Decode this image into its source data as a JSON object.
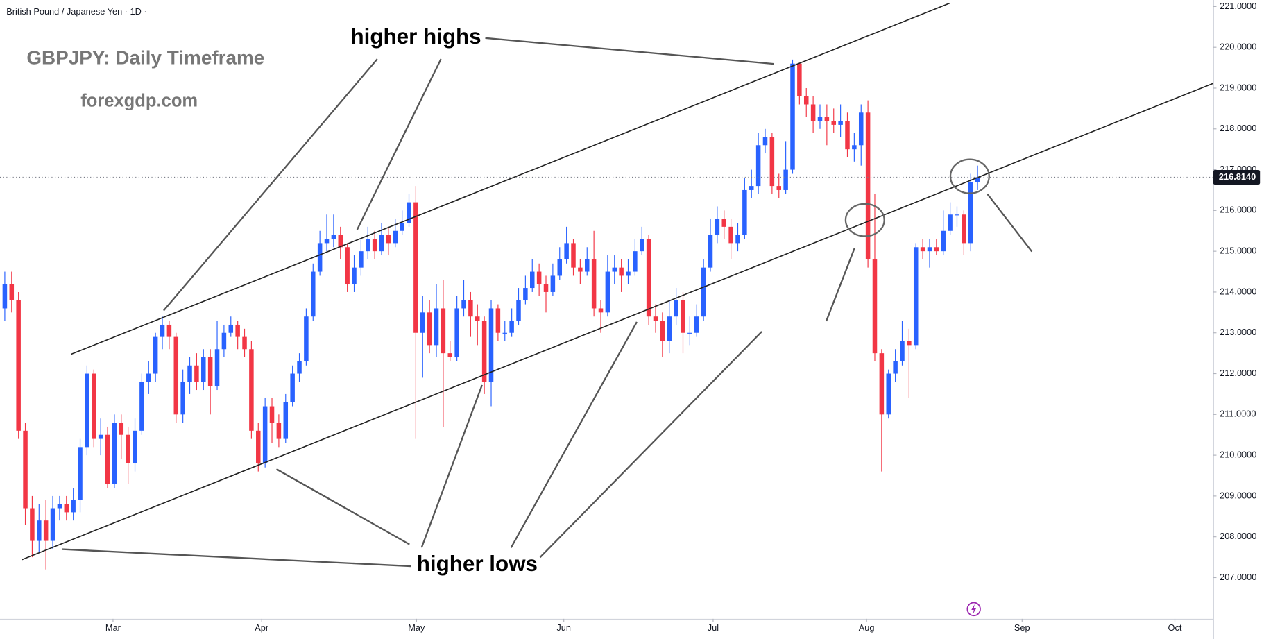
{
  "chart_data": {
    "type": "candlestick",
    "legend_text": "British Pound / Japanese Yen · 1D ·",
    "title": "GBPJPY: Daily Timeframe",
    "subtitle": "forexgdp.com",
    "annotations": [
      "higher highs",
      "higher lows"
    ],
    "up_color": "#2962ff",
    "down_color": "#f23645",
    "open": [
      213.6,
      214.2,
      213.8,
      210.6,
      208.7,
      207.9,
      208.4,
      207.9,
      208.7,
      208.8,
      208.6,
      208.9,
      210.2,
      212.0,
      210.4,
      210.5,
      209.3,
      210.8,
      210.5,
      209.8,
      210.6,
      211.8,
      212.0,
      212.9,
      213.2,
      212.9,
      211.0,
      211.8,
      212.2,
      211.8,
      212.4,
      211.7,
      212.6,
      213.0,
      213.2,
      212.9,
      212.6,
      210.6,
      209.8,
      211.2,
      210.8,
      210.4,
      211.3,
      212.0,
      212.3,
      213.4,
      214.5,
      215.2,
      215.3,
      215.4,
      215.1,
      214.2,
      214.6,
      215.0,
      215.3,
      215.0,
      215.4,
      215.2,
      215.5,
      215.7,
      216.2,
      213.0,
      213.5,
      212.7,
      213.6,
      212.5,
      212.4,
      213.6,
      213.8,
      213.4,
      213.3,
      211.8,
      213.6,
      213.0,
      213.0,
      213.3,
      213.8,
      214.1,
      214.5,
      214.2,
      214.0,
      214.4,
      214.8,
      215.2,
      214.6,
      214.5,
      214.8,
      213.6,
      213.5,
      214.5,
      214.6,
      214.4,
      214.5,
      215.0,
      215.3,
      213.4,
      213.3,
      212.8,
      213.4,
      213.8,
      213.0,
      213.0,
      213.4,
      214.6,
      215.4,
      215.8,
      215.6,
      215.2,
      215.4,
      216.5,
      216.6,
      217.6,
      217.8,
      216.6,
      216.5,
      217.0,
      219.6,
      218.8,
      218.6,
      218.2,
      218.3,
      218.2,
      218.1,
      218.2,
      217.5,
      217.6,
      218.4,
      214.8,
      212.5,
      211.0,
      212.0,
      212.3,
      212.8,
      212.7,
      215.1,
      215.0,
      215.1,
      215.0,
      215.5,
      215.9,
      215.9,
      215.2,
      216.7
    ],
    "high": [
      214.5,
      214.5,
      214.0,
      210.8,
      209.0,
      208.8,
      208.9,
      209.0,
      209.0,
      209.0,
      209.2,
      210.4,
      212.2,
      212.1,
      210.9,
      210.7,
      211.0,
      211.0,
      210.7,
      210.9,
      212.0,
      212.3,
      213.0,
      213.4,
      213.3,
      213.0,
      212.1,
      212.4,
      212.5,
      212.6,
      212.6,
      213.3,
      213.2,
      213.4,
      213.3,
      213.1,
      212.8,
      210.8,
      211.4,
      211.4,
      211.0,
      211.5,
      212.2,
      212.5,
      213.6,
      214.7,
      215.5,
      215.9,
      215.9,
      215.6,
      215.2,
      214.9,
      215.3,
      215.6,
      215.5,
      215.7,
      215.6,
      215.8,
      216.0,
      216.4,
      216.6,
      213.9,
      213.8,
      214.2,
      214.3,
      212.8,
      213.9,
      214.3,
      214.0,
      213.7,
      213.4,
      213.8,
      213.7,
      213.3,
      213.6,
      214.1,
      214.4,
      214.8,
      214.7,
      214.4,
      214.7,
      215.1,
      215.6,
      215.3,
      214.8,
      215.1,
      215.5,
      213.8,
      214.9,
      214.9,
      214.8,
      214.8,
      215.3,
      215.6,
      215.4,
      213.7,
      213.5,
      213.8,
      214.1,
      214.0,
      213.4,
      213.7,
      214.8,
      215.8,
      216.1,
      216.0,
      215.8,
      215.7,
      216.8,
      217.0,
      217.9,
      218.0,
      217.9,
      216.9,
      217.7,
      219.7,
      219.6,
      219.0,
      218.8,
      218.6,
      218.6,
      218.5,
      218.6,
      218.4,
      217.9,
      218.6,
      218.7,
      216.4,
      212.6,
      212.1,
      212.6,
      213.3,
      213.1,
      215.2,
      215.3,
      215.3,
      215.3,
      216.0,
      216.2,
      216.1,
      216.0,
      216.9,
      217.1
    ],
    "low": [
      213.3,
      213.5,
      210.4,
      208.3,
      207.5,
      207.6,
      207.2,
      207.7,
      208.4,
      208.4,
      208.4,
      208.6,
      210.0,
      210.2,
      210.0,
      209.2,
      209.2,
      209.9,
      209.3,
      209.6,
      210.5,
      211.5,
      211.8,
      212.6,
      212.6,
      210.8,
      210.8,
      211.5,
      211.6,
      211.6,
      211.0,
      211.6,
      212.4,
      212.9,
      212.6,
      212.4,
      210.4,
      209.6,
      209.7,
      210.3,
      210.2,
      210.3,
      211.2,
      211.8,
      212.2,
      213.3,
      214.4,
      215.0,
      215.1,
      214.8,
      214.0,
      214.0,
      214.4,
      214.8,
      214.8,
      214.9,
      214.9,
      215.1,
      215.4,
      215.6,
      210.4,
      211.9,
      212.5,
      212.4,
      210.7,
      212.3,
      212.3,
      213.4,
      212.9,
      212.7,
      211.5,
      211.2,
      212.8,
      212.8,
      212.9,
      213.2,
      213.7,
      214.0,
      213.9,
      213.5,
      213.9,
      214.3,
      214.7,
      214.4,
      214.2,
      214.4,
      213.4,
      213.0,
      213.4,
      214.2,
      214.0,
      214.2,
      214.4,
      214.9,
      213.2,
      213.0,
      212.4,
      212.5,
      213.2,
      212.5,
      212.7,
      212.9,
      213.3,
      214.5,
      215.2,
      215.3,
      214.8,
      215.0,
      215.3,
      216.3,
      216.4,
      217.4,
      216.4,
      216.3,
      216.4,
      216.9,
      218.6,
      218.3,
      217.9,
      218.0,
      217.6,
      217.9,
      217.8,
      217.3,
      217.2,
      217.1,
      214.6,
      212.3,
      209.6,
      210.9,
      211.8,
      212.2,
      211.4,
      212.6,
      214.8,
      214.6,
      214.9,
      214.9,
      215.4,
      215.6,
      214.9,
      215.0,
      216.5
    ],
    "close": [
      214.2,
      213.8,
      210.6,
      208.7,
      207.9,
      208.4,
      207.9,
      208.7,
      208.8,
      208.6,
      208.9,
      210.2,
      212.0,
      210.4,
      210.5,
      209.3,
      210.8,
      210.5,
      209.8,
      210.6,
      211.8,
      212.0,
      212.9,
      213.2,
      212.9,
      211.0,
      211.8,
      212.2,
      211.8,
      212.4,
      211.7,
      212.6,
      213.0,
      213.2,
      212.9,
      212.6,
      210.6,
      209.8,
      211.2,
      210.8,
      210.4,
      211.3,
      212.0,
      212.3,
      213.4,
      214.5,
      215.2,
      215.3,
      215.4,
      215.1,
      214.2,
      214.6,
      215.0,
      215.3,
      215.0,
      215.4,
      215.2,
      215.5,
      215.7,
      216.2,
      213.0,
      213.5,
      212.7,
      213.6,
      212.5,
      212.4,
      213.6,
      213.8,
      213.4,
      213.3,
      211.8,
      213.6,
      213.0,
      213.0,
      213.3,
      213.8,
      214.1,
      214.5,
      214.2,
      214.0,
      214.4,
      214.8,
      215.2,
      214.6,
      214.5,
      214.8,
      213.6,
      213.5,
      214.5,
      214.6,
      214.4,
      214.5,
      215.0,
      215.3,
      213.4,
      213.3,
      212.8,
      213.4,
      213.8,
      213.0,
      213.0,
      213.4,
      214.6,
      215.4,
      215.8,
      215.6,
      215.2,
      215.4,
      216.5,
      216.6,
      217.6,
      217.8,
      216.6,
      216.5,
      217.0,
      219.6,
      218.8,
      218.6,
      218.2,
      218.3,
      218.2,
      218.1,
      218.2,
      217.5,
      217.6,
      218.4,
      214.8,
      212.5,
      211.0,
      212.0,
      212.3,
      212.8,
      212.7,
      215.1,
      215.0,
      215.1,
      215.0,
      215.5,
      215.9,
      215.9,
      215.2,
      216.7,
      216.814
    ],
    "last_price": {
      "value": 216.814,
      "label": "216.8140"
    },
    "xlim": [
      -0.7,
      176.4
    ],
    "xticks": [
      {
        "value": 15.8,
        "label": "Mar"
      },
      {
        "value": 37.5,
        "label": "Apr"
      },
      {
        "value": 60.1,
        "label": "May"
      },
      {
        "value": 81.6,
        "label": "Jun"
      },
      {
        "value": 103.4,
        "label": "Jul"
      },
      {
        "value": 125.8,
        "label": "Aug"
      },
      {
        "value": 148.5,
        "label": "Sep"
      },
      {
        "value": 170.8,
        "label": "Oct"
      }
    ],
    "ylim": [
      205.99,
      221.16
    ],
    "yticks": [
      {
        "value": 207,
        "label": "207.0000"
      },
      {
        "value": 208,
        "label": "208.0000"
      },
      {
        "value": 209,
        "label": "209.0000"
      },
      {
        "value": 210,
        "label": "210.0000"
      },
      {
        "value": 211,
        "label": "211.0000"
      },
      {
        "value": 212,
        "label": "212.0000"
      },
      {
        "value": 213,
        "label": "213.0000"
      },
      {
        "value": 214,
        "label": "214.0000"
      },
      {
        "value": 215,
        "label": "215.0000"
      },
      {
        "value": 216,
        "label": "216.0000"
      },
      {
        "value": 217,
        "label": "217.0000"
      },
      {
        "value": 218,
        "label": "218.0000"
      },
      {
        "value": 219,
        "label": "219.0000"
      },
      {
        "value": 220,
        "label": "220.0000"
      },
      {
        "value": 221,
        "label": "221.0000"
      }
    ]
  }
}
